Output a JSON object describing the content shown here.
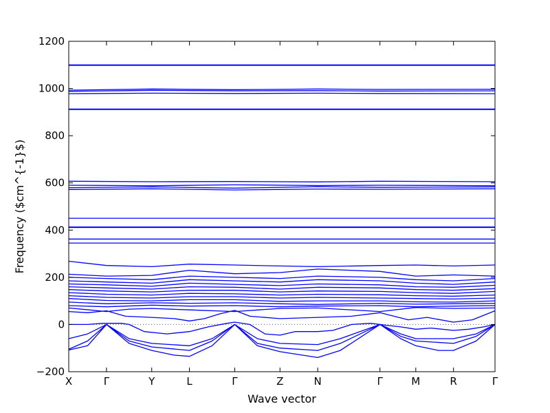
{
  "chart_data": {
    "type": "line",
    "title": "",
    "xlabel": "Wave vector",
    "ylabel": "Frequency ($cm^{-1}$)",
    "ylim": [
      -200,
      1200
    ],
    "yticks": [
      -200,
      0,
      200,
      400,
      600,
      800,
      1000,
      1200
    ],
    "xlim": [
      0,
      11.3
    ],
    "high_symmetry_points": [
      {
        "label": "X",
        "x": 0.0
      },
      {
        "label": "Γ",
        "x": 1.0
      },
      {
        "label": "Y",
        "x": 2.2
      },
      {
        "label": "L",
        "x": 3.2
      },
      {
        "label": "Γ",
        "x": 4.4
      },
      {
        "label": "Z",
        "x": 5.6
      },
      {
        "label": "N",
        "x": 6.6
      },
      {
        "label": "Γ",
        "x": 8.25
      },
      {
        "label": "M",
        "x": 9.2
      },
      {
        "label": "R",
        "x": 10.2
      },
      {
        "label": "Γ",
        "x": 11.3
      }
    ],
    "zero_line": {
      "y": 0,
      "style": "dotted",
      "color": "#555555"
    },
    "grid": false,
    "legend": "none",
    "line_color": "#0000ff",
    "series": [
      {
        "x": [
          0,
          11.3
        ],
        "y": [
          1100,
          1100
        ]
      },
      {
        "x": [
          0,
          11.3
        ],
        "y": [
          1098,
          1098
        ]
      },
      {
        "x": [
          0,
          2.2,
          4.4,
          6.6,
          8.25,
          11.3
        ],
        "y": [
          993,
          998,
          995,
          998,
          996,
          997
        ]
      },
      {
        "x": [
          0,
          2.2,
          4.4,
          6.6,
          8.25,
          11.3
        ],
        "y": [
          988,
          992,
          990,
          991,
          989,
          990
        ]
      },
      {
        "x": [
          0,
          2.2,
          4.4,
          6.6,
          8.25,
          11.3
        ],
        "y": [
          978,
          980,
          979,
          980,
          979,
          978
        ]
      },
      {
        "x": [
          0,
          11.3
        ],
        "y": [
          913,
          913
        ]
      },
      {
        "x": [
          0,
          11.3
        ],
        "y": [
          911,
          911
        ]
      },
      {
        "x": [
          0,
          2.2,
          4.4,
          6.6,
          8.25,
          11.3
        ],
        "y": [
          607,
          605,
          606,
          604,
          607,
          605
        ]
      },
      {
        "x": [
          0,
          2.2,
          4.4,
          6.6,
          8.25,
          11.3
        ],
        "y": [
          590,
          588,
          592,
          589,
          590,
          588
        ]
      },
      {
        "x": [
          0,
          2.2,
          4.4,
          6.6,
          8.25,
          11.3
        ],
        "y": [
          580,
          583,
          578,
          584,
          581,
          583
        ]
      },
      {
        "x": [
          0,
          2.2,
          4.4,
          6.6,
          8.25,
          11.3
        ],
        "y": [
          572,
          575,
          570,
          574,
          573,
          575
        ]
      },
      {
        "x": [
          0,
          11.3
        ],
        "y": [
          450,
          450
        ]
      },
      {
        "x": [
          0,
          11.3
        ],
        "y": [
          413,
          413
        ]
      },
      {
        "x": [
          0,
          11.3
        ],
        "y": [
          411,
          411
        ]
      },
      {
        "x": [
          0,
          11.3
        ],
        "y": [
          362,
          362
        ]
      },
      {
        "x": [
          0,
          11.3
        ],
        "y": [
          345,
          345
        ]
      },
      {
        "x": [
          0,
          1.0,
          2.2,
          3.2,
          4.4,
          5.6,
          6.6,
          8.25,
          9.2,
          10.2,
          11.3
        ],
        "y": [
          268,
          250,
          245,
          256,
          252,
          248,
          245,
          250,
          252,
          248,
          252
        ]
      },
      {
        "x": [
          0,
          1.0,
          2.2,
          3.2,
          4.4,
          5.6,
          6.6,
          8.25,
          9.2,
          10.2,
          11.3
        ],
        "y": [
          213,
          205,
          208,
          230,
          215,
          220,
          235,
          225,
          205,
          210,
          205
        ]
      },
      {
        "x": [
          0,
          1.0,
          2.2,
          3.2,
          4.4,
          5.6,
          6.6,
          8.25,
          9.2,
          10.2,
          11.3
        ],
        "y": [
          200,
          195,
          190,
          205,
          200,
          195,
          205,
          200,
          190,
          185,
          195
        ]
      },
      {
        "x": [
          0,
          1.0,
          2.2,
          3.2,
          4.4,
          5.6,
          6.6,
          8.25,
          9.2,
          10.2,
          11.3
        ],
        "y": [
          185,
          180,
          175,
          190,
          185,
          180,
          190,
          185,
          175,
          170,
          180
        ]
      },
      {
        "x": [
          0,
          1.0,
          2.2,
          3.2,
          4.4,
          5.6,
          6.6,
          8.25,
          9.2,
          10.2,
          11.3
        ],
        "y": [
          172,
          168,
          162,
          175,
          170,
          165,
          172,
          168,
          160,
          158,
          166
        ]
      },
      {
        "x": [
          0,
          1.0,
          2.2,
          3.2,
          4.4,
          5.6,
          6.6,
          8.25,
          9.2,
          10.2,
          11.3
        ],
        "y": [
          160,
          155,
          150,
          160,
          158,
          150,
          158,
          155,
          148,
          145,
          152
        ]
      },
      {
        "x": [
          0,
          1.0,
          2.2,
          3.2,
          4.4,
          5.6,
          6.6,
          8.25,
          9.2,
          10.2,
          11.3
        ],
        "y": [
          148,
          142,
          138,
          145,
          145,
          138,
          142,
          140,
          135,
          132,
          140
        ]
      },
      {
        "x": [
          0,
          1.0,
          2.2,
          3.2,
          4.4,
          5.6,
          6.6,
          8.25,
          9.2,
          10.2,
          11.3
        ],
        "y": [
          135,
          128,
          125,
          132,
          130,
          125,
          128,
          126,
          122,
          120,
          125
        ]
      },
      {
        "x": [
          0,
          1.0,
          2.2,
          3.2,
          4.4,
          5.6,
          6.6,
          8.25,
          9.2,
          10.2,
          11.3
        ],
        "y": [
          122,
          115,
          112,
          118,
          118,
          112,
          115,
          112,
          110,
          108,
          112
        ]
      },
      {
        "x": [
          0,
          1.0,
          2.2,
          3.2,
          4.4,
          5.6,
          6.6,
          8.25,
          9.2,
          10.2,
          11.3
        ],
        "y": [
          110,
          102,
          100,
          105,
          105,
          98,
          100,
          100,
          96,
          95,
          100
        ]
      },
      {
        "x": [
          0,
          1.0,
          2.2,
          3.2,
          4.4,
          5.6,
          6.6,
          8.25,
          9.2,
          10.2,
          11.3
        ],
        "y": [
          95,
          88,
          92,
          90,
          92,
          88,
          85,
          90,
          86,
          88,
          90
        ]
      },
      {
        "x": [
          0,
          1.0,
          2.2,
          3.2,
          4.4,
          5.6,
          6.6,
          8.25,
          9.2,
          10.2,
          11.3
        ],
        "y": [
          80,
          75,
          82,
          78,
          80,
          75,
          78,
          80,
          75,
          78,
          80
        ]
      },
      {
        "x": [
          0,
          1.0,
          1.6,
          2.2,
          3.2,
          4.4,
          5.6,
          6.6,
          8.25,
          9.2,
          10.2,
          11.3
        ],
        "y": [
          70,
          55,
          65,
          68,
          62,
          55,
          68,
          70,
          55,
          72,
          68,
          70
        ]
      },
      {
        "x": [
          0,
          0.5,
          1.0,
          1.5,
          2.2,
          2.8,
          3.2,
          3.6,
          4.0,
          4.4,
          4.8,
          5.6,
          6.6,
          7.5,
          8.25,
          9.0,
          9.5,
          10.2,
          10.7,
          11.3
        ],
        "y": [
          55,
          50,
          58,
          35,
          30,
          25,
          15,
          25,
          45,
          60,
          35,
          25,
          30,
          35,
          50,
          20,
          30,
          10,
          20,
          58
        ]
      },
      {
        "x": [
          0,
          0.5,
          0.9,
          1.0,
          1.4,
          1.6,
          2.0,
          2.6,
          3.2,
          3.7,
          4.2,
          4.4,
          4.8,
          5.2,
          5.6,
          6.0,
          6.6,
          7.0,
          7.5,
          8.0,
          8.25,
          8.5,
          8.8,
          9.2,
          9.6,
          10.2,
          10.6,
          11.0,
          11.3
        ],
        "y": [
          0,
          0,
          5,
          5,
          5,
          0,
          -30,
          -40,
          -30,
          -10,
          5,
          10,
          0,
          -40,
          -45,
          -30,
          -30,
          -25,
          0,
          5,
          0,
          -5,
          -10,
          -20,
          -15,
          -25,
          -20,
          -10,
          0
        ]
      },
      {
        "x": [
          0,
          0.5,
          1.0,
          1.6,
          2.2,
          3.2,
          3.8,
          4.4,
          5.0,
          5.6,
          6.6,
          7.2,
          8.25,
          8.8,
          9.2,
          10.2,
          10.8,
          11.3
        ],
        "y": [
          -60,
          -40,
          0,
          -60,
          -80,
          -90,
          -60,
          0,
          -60,
          -80,
          -85,
          -60,
          0,
          -40,
          -60,
          -60,
          -40,
          0
        ]
      },
      {
        "x": [
          0,
          0.5,
          1.0,
          1.6,
          2.2,
          3.2,
          3.8,
          4.4,
          5.0,
          5.6,
          6.6,
          7.2,
          8.25,
          8.8,
          9.2,
          10.2,
          10.8,
          11.3
        ],
        "y": [
          -105,
          -70,
          0,
          -70,
          -95,
          -110,
          -70,
          0,
          -80,
          -100,
          -110,
          -80,
          0,
          -50,
          -70,
          -80,
          -50,
          0
        ]
      },
      {
        "x": [
          0,
          0.5,
          1.0,
          1.6,
          2.2,
          2.8,
          3.2,
          3.8,
          4.4,
          5.0,
          5.6,
          6.2,
          6.6,
          7.2,
          8.25,
          8.8,
          9.2,
          9.8,
          10.2,
          10.8,
          11.3
        ],
        "y": [
          -108,
          -90,
          0,
          -80,
          -110,
          -130,
          -135,
          -90,
          0,
          -90,
          -115,
          -130,
          -140,
          -110,
          0,
          -60,
          -90,
          -110,
          -110,
          -70,
          0
        ]
      }
    ]
  }
}
